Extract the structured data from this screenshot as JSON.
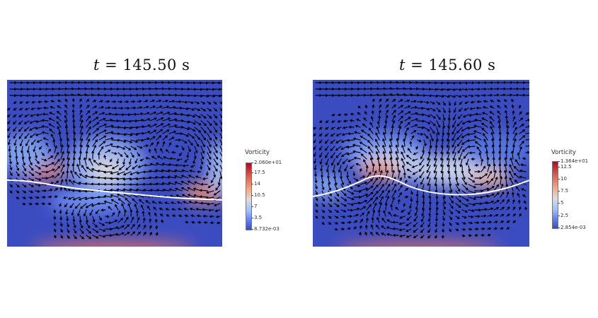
{
  "panels": [
    {
      "title_var": "t",
      "title_eq": "=",
      "title_value": "145.50",
      "title_unit": "s",
      "colorbar": {
        "title": "Vorticity",
        "max_label": "2.060e+01",
        "min_label": "8.732e-03",
        "ticks": [
          "17.5",
          "14",
          "10.5",
          "7",
          "3.5"
        ],
        "tick_fracs": [
          0.15,
          0.32,
          0.49,
          0.66,
          0.83
        ]
      }
    },
    {
      "title_var": "t",
      "title_eq": "=",
      "title_value": "145.60",
      "title_unit": "s",
      "colorbar": {
        "title": "Vorticity",
        "max_label": "1.364e+01",
        "min_label": "2.854e-03",
        "ticks": [
          "12.5",
          "10",
          "7.5",
          "5",
          "2.5"
        ],
        "tick_fracs": [
          0.08,
          0.27,
          0.45,
          0.63,
          0.82
        ]
      }
    }
  ],
  "colors": {
    "field_low": "#3b4cc0",
    "field_high": "#b40426",
    "interface": "#ffffff",
    "vectors": "#000000"
  }
}
